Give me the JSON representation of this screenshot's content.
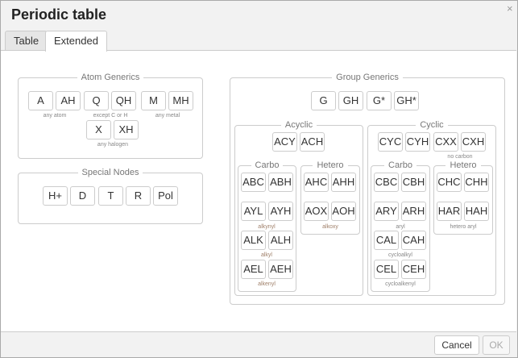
{
  "dialog": {
    "title": "Periodic table",
    "close_icon": "×"
  },
  "tabs": [
    {
      "label": "Table"
    },
    {
      "label": "Extended",
      "active": true
    }
  ],
  "atom_generics": {
    "legend": "Atom Generics",
    "buttons": [
      "A",
      "AH",
      "Q",
      "QH",
      "M",
      "MH",
      "X",
      "XH"
    ],
    "captions": [
      "any atom",
      "except C or H",
      "any metal",
      "any halogen"
    ]
  },
  "special_nodes": {
    "legend": "Special Nodes",
    "buttons": [
      "H+",
      "D",
      "T",
      "R",
      "Pol"
    ]
  },
  "group_generics": {
    "legend": "Group Generics",
    "buttons": [
      "G",
      "GH",
      "G*",
      "GH*"
    ],
    "acyclic": {
      "legend": "Acyclic",
      "buttons": [
        "ACY",
        "ACH"
      ],
      "carbo": {
        "legend": "Carbo",
        "buttons": [
          "ABC",
          "ABH",
          "AYL",
          "AYH",
          "ALK",
          "ALH",
          "AEL",
          "AEH"
        ],
        "captions": [
          "alkynyl",
          "alkyl",
          "alkenyl"
        ]
      },
      "hetero": {
        "legend": "Hetero",
        "buttons": [
          "AHC",
          "AHH",
          "AOX",
          "AOH"
        ],
        "captions": [
          "alkoxy"
        ]
      }
    },
    "cyclic": {
      "legend": "Cyclic",
      "buttons": [
        "CYC",
        "CYH",
        "CXX",
        "CXH"
      ],
      "captions": [
        "no carbon"
      ],
      "carbo": {
        "legend": "Carbo",
        "buttons": [
          "CBC",
          "CBH",
          "ARY",
          "ARH",
          "CAL",
          "CAH",
          "CEL",
          "CEH"
        ],
        "captions": [
          "aryl",
          "cycloalkyl",
          "cycloalkenyl"
        ]
      },
      "hetero": {
        "legend": "Hetero",
        "buttons": [
          "CHC",
          "CHH",
          "HAR",
          "HAH"
        ],
        "captions": [
          "hetero aryl"
        ]
      }
    }
  },
  "footer": {
    "cancel": "Cancel",
    "ok": "OK",
    "ok_disabled": true
  }
}
